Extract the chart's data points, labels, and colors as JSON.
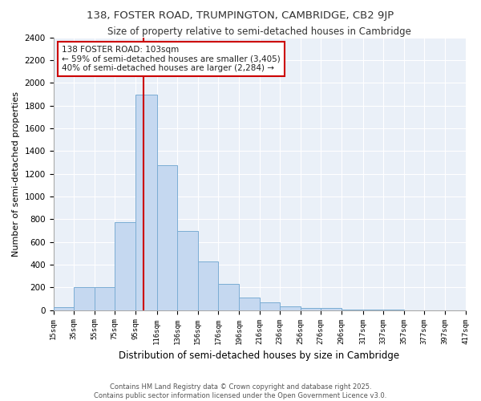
{
  "title": "138, FOSTER ROAD, TRUMPINGTON, CAMBRIDGE, CB2 9JP",
  "subtitle": "Size of property relative to semi-detached houses in Cambridge",
  "xlabel": "Distribution of semi-detached houses by size in Cambridge",
  "ylabel": "Number of semi-detached properties",
  "bar_color": "#c5d8f0",
  "bar_edge_color": "#7badd4",
  "background_color": "#eaf0f8",
  "grid_color": "#ffffff",
  "vline_value": 103,
  "vline_color": "#cc0000",
  "annotation_title": "138 FOSTER ROAD: 103sqm",
  "annotation_line1": "← 59% of semi-detached houses are smaller (3,405)",
  "annotation_line2": "40% of semi-detached houses are larger (2,284) →",
  "annotation_box_color": "#cc0000",
  "bins": [
    15,
    35,
    55,
    75,
    95,
    116,
    136,
    156,
    176,
    196,
    216,
    236,
    256,
    276,
    296,
    317,
    337,
    357,
    377,
    397,
    417
  ],
  "counts": [
    25,
    200,
    200,
    775,
    1900,
    1275,
    700,
    430,
    230,
    110,
    65,
    35,
    20,
    20,
    5,
    5,
    5,
    0,
    0,
    0
  ],
  "ylim": [
    0,
    2400
  ],
  "yticks": [
    0,
    200,
    400,
    600,
    800,
    1000,
    1200,
    1400,
    1600,
    1800,
    2000,
    2200,
    2400
  ],
  "footnote1": "Contains HM Land Registry data © Crown copyright and database right 2025.",
  "footnote2": "Contains public sector information licensed under the Open Government Licence v3.0."
}
